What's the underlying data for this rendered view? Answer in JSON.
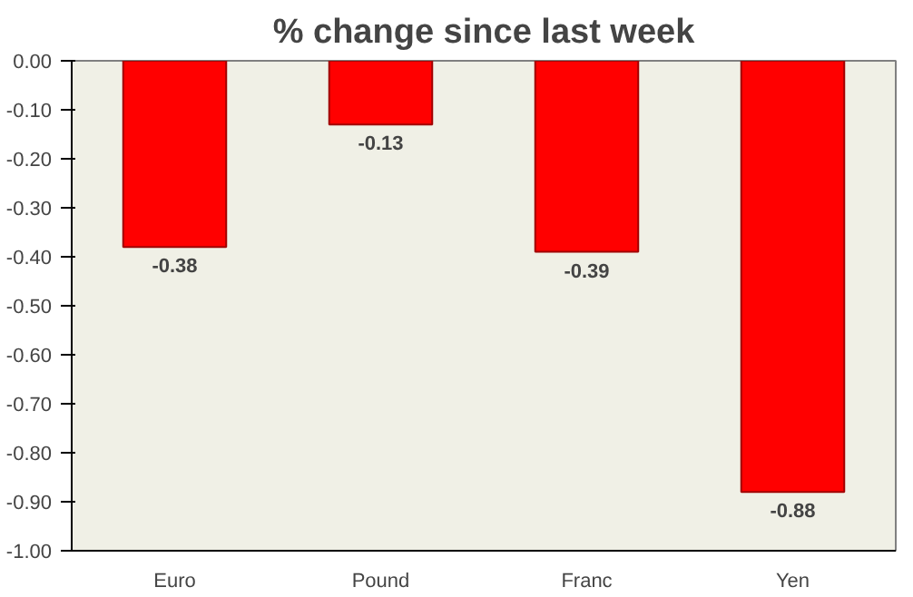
{
  "chart_data": {
    "type": "bar",
    "title": "% change since last week",
    "categories": [
      "Euro",
      "Pound",
      "Franc",
      "Yen"
    ],
    "values": [
      -0.38,
      -0.13,
      -0.39,
      -0.88
    ],
    "color": "#ff0000",
    "ylim": [
      -1.0,
      0.0
    ],
    "yticks": [
      {
        "value": 0.0,
        "label": "0.00"
      },
      {
        "value": -0.1,
        "label": "-0.10"
      },
      {
        "value": -0.2,
        "label": "-0.20"
      },
      {
        "value": -0.3,
        "label": "-0.30"
      },
      {
        "value": -0.4,
        "label": "-0.40"
      },
      {
        "value": -0.5,
        "label": "-0.50"
      },
      {
        "value": -0.6,
        "label": "-0.60"
      },
      {
        "value": -0.7,
        "label": "-0.70"
      },
      {
        "value": -0.8,
        "label": "-0.80"
      },
      {
        "value": -0.9,
        "label": "-0.90"
      },
      {
        "value": -1.0,
        "label": "-1.00"
      }
    ],
    "data_labels": true,
    "grid": false
  }
}
